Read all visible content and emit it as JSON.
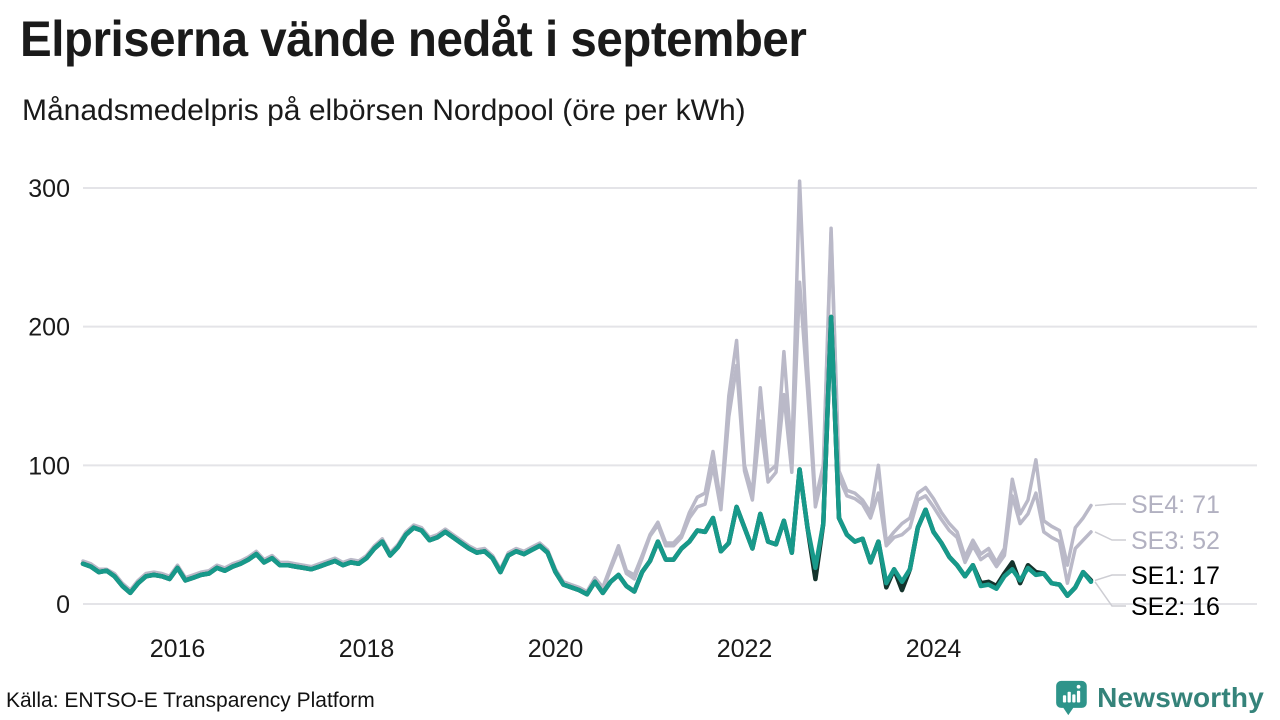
{
  "title": "Elpriserna vände nedåt i september",
  "subtitle": "Månadsmedelpris på elbörsen Nordpool (öre per kWh)",
  "source": "Källa: ENTSO-E Transparency Platform",
  "branding": {
    "name": "Newsworthy",
    "icon": "chart-speech-bubble-icon",
    "color": "#2E948A"
  },
  "chart_data": {
    "type": "line",
    "title": "Elpriserna vände nedåt i september",
    "subtitle": "Månadsmedelpris på elbörsen Nordpool (öre per kWh)",
    "unit": "öre per kWh",
    "x_start": "2015-01",
    "x_end": "2025-09",
    "x_tick_labels": [
      "2016",
      "2018",
      "2020",
      "2022",
      "2024"
    ],
    "y_ticks": [
      0,
      100,
      200,
      300
    ],
    "ylim": [
      0,
      310
    ],
    "grid": "horizontal-only",
    "legend_position": "end-of-line-labels-right",
    "colors": {
      "grid": "#E4E4E8",
      "leader": "#CDCDD3",
      "gray_series": "#BAB9C8",
      "dark_series": "#14332C",
      "teal_series": "#17998A"
    },
    "series": [
      {
        "name": "SE4",
        "color": "#BAB9C8",
        "label_color": "#B2B1C1",
        "end_label": "SE4: 71",
        "end_value": 71,
        "values": [
          31,
          29,
          25,
          25,
          22,
          15,
          10,
          17,
          22,
          23,
          22,
          20,
          28,
          19,
          21,
          23,
          24,
          28,
          26,
          29,
          31,
          34,
          38,
          32,
          35,
          30,
          30,
          29,
          28,
          27,
          29,
          31,
          33,
          30,
          32,
          31,
          35,
          42,
          47,
          37,
          43,
          52,
          57,
          55,
          48,
          50,
          54,
          50,
          46,
          42,
          39,
          40,
          35,
          25,
          37,
          40,
          38,
          41,
          44,
          39,
          25,
          16,
          14,
          12,
          9,
          19,
          12,
          27,
          42,
          24,
          21,
          35,
          50,
          59,
          44,
          44,
          50,
          66,
          77,
          80,
          110,
          72,
          150,
          190,
          100,
          80,
          156,
          95,
          100,
          182,
          107,
          305,
          172,
          75,
          100,
          271,
          96,
          82,
          80,
          75,
          66,
          100,
          45,
          52,
          58,
          62,
          80,
          84,
          76,
          66,
          58,
          52,
          34,
          46,
          36,
          40,
          30,
          40,
          90,
          65,
          75,
          104,
          60,
          56,
          53,
          28,
          55,
          62,
          71
        ]
      },
      {
        "name": "SE3",
        "color": "#BAB9C8",
        "label_color": "#B2B1C1",
        "end_label": "SE3: 52",
        "end_value": 52,
        "values": [
          30,
          28,
          24,
          24,
          21,
          14,
          9,
          16,
          21,
          22,
          21,
          19,
          27,
          18,
          20,
          22,
          23,
          27,
          25,
          28,
          30,
          33,
          37,
          31,
          34,
          29,
          29,
          28,
          27,
          26,
          28,
          30,
          32,
          29,
          31,
          30,
          34,
          41,
          46,
          36,
          42,
          51,
          56,
          54,
          47,
          49,
          53,
          49,
          45,
          41,
          38,
          39,
          34,
          24,
          36,
          39,
          37,
          40,
          43,
          38,
          24,
          15,
          13,
          11,
          8,
          18,
          10,
          25,
          39,
          22,
          18,
          33,
          49,
          57,
          42,
          42,
          48,
          62,
          70,
          72,
          100,
          68,
          135,
          172,
          96,
          75,
          132,
          88,
          95,
          151,
          95,
          232,
          155,
          70,
          95,
          268,
          91,
          78,
          76,
          72,
          62,
          80,
          42,
          48,
          50,
          55,
          75,
          78,
          70,
          61,
          53,
          48,
          30,
          42,
          32,
          36,
          27,
          35,
          78,
          58,
          65,
          80,
          52,
          48,
          45,
          15,
          40,
          46,
          52
        ]
      },
      {
        "name": "SE1",
        "color": "#14332C",
        "label_color": "#000000",
        "end_label": "SE1: 17",
        "end_value": 17,
        "values": [
          29,
          27,
          23,
          24,
          20,
          13,
          8,
          15,
          20,
          21,
          20,
          18,
          26,
          17,
          19,
          21,
          22,
          26,
          24,
          27,
          29,
          32,
          36,
          30,
          33,
          28,
          28,
          27,
          26,
          25,
          27,
          29,
          31,
          28,
          30,
          29,
          33,
          40,
          45,
          35,
          41,
          50,
          55,
          53,
          46,
          48,
          52,
          48,
          44,
          40,
          37,
          38,
          33,
          23,
          35,
          38,
          36,
          39,
          42,
          37,
          23,
          14,
          12,
          10,
          7,
          16,
          8,
          16,
          21,
          13,
          9,
          23,
          31,
          45,
          32,
          32,
          40,
          45,
          53,
          52,
          62,
          38,
          44,
          70,
          55,
          40,
          65,
          45,
          43,
          60,
          37,
          97,
          55,
          18,
          58,
          207,
          62,
          50,
          45,
          47,
          30,
          45,
          12,
          25,
          10,
          25,
          55,
          68,
          52,
          44,
          34,
          28,
          20,
          28,
          15,
          16,
          13,
          22,
          30,
          15,
          28,
          23,
          22,
          15,
          14,
          6,
          12,
          23,
          17
        ]
      },
      {
        "name": "SE2",
        "color": "#17998A",
        "label_color": "#000000",
        "end_label": "SE2: 16",
        "end_value": 16,
        "values": [
          29,
          27,
          23,
          24,
          20,
          13,
          8,
          15,
          20,
          21,
          20,
          18,
          26,
          17,
          19,
          21,
          22,
          26,
          24,
          27,
          29,
          32,
          36,
          30,
          33,
          28,
          28,
          27,
          26,
          25,
          27,
          29,
          31,
          28,
          30,
          29,
          33,
          40,
          45,
          35,
          41,
          50,
          55,
          53,
          46,
          48,
          52,
          48,
          44,
          40,
          37,
          38,
          33,
          23,
          35,
          38,
          36,
          39,
          42,
          37,
          23,
          14,
          12,
          10,
          7,
          16,
          8,
          16,
          21,
          13,
          9,
          23,
          31,
          45,
          32,
          32,
          40,
          45,
          53,
          52,
          62,
          38,
          44,
          70,
          55,
          40,
          65,
          45,
          43,
          60,
          37,
          97,
          55,
          26,
          58,
          207,
          62,
          50,
          45,
          47,
          30,
          45,
          15,
          25,
          16,
          25,
          55,
          68,
          52,
          44,
          34,
          28,
          20,
          28,
          13,
          14,
          11,
          20,
          25,
          17,
          26,
          21,
          22,
          15,
          14,
          6,
          12,
          23,
          16
        ]
      }
    ]
  }
}
